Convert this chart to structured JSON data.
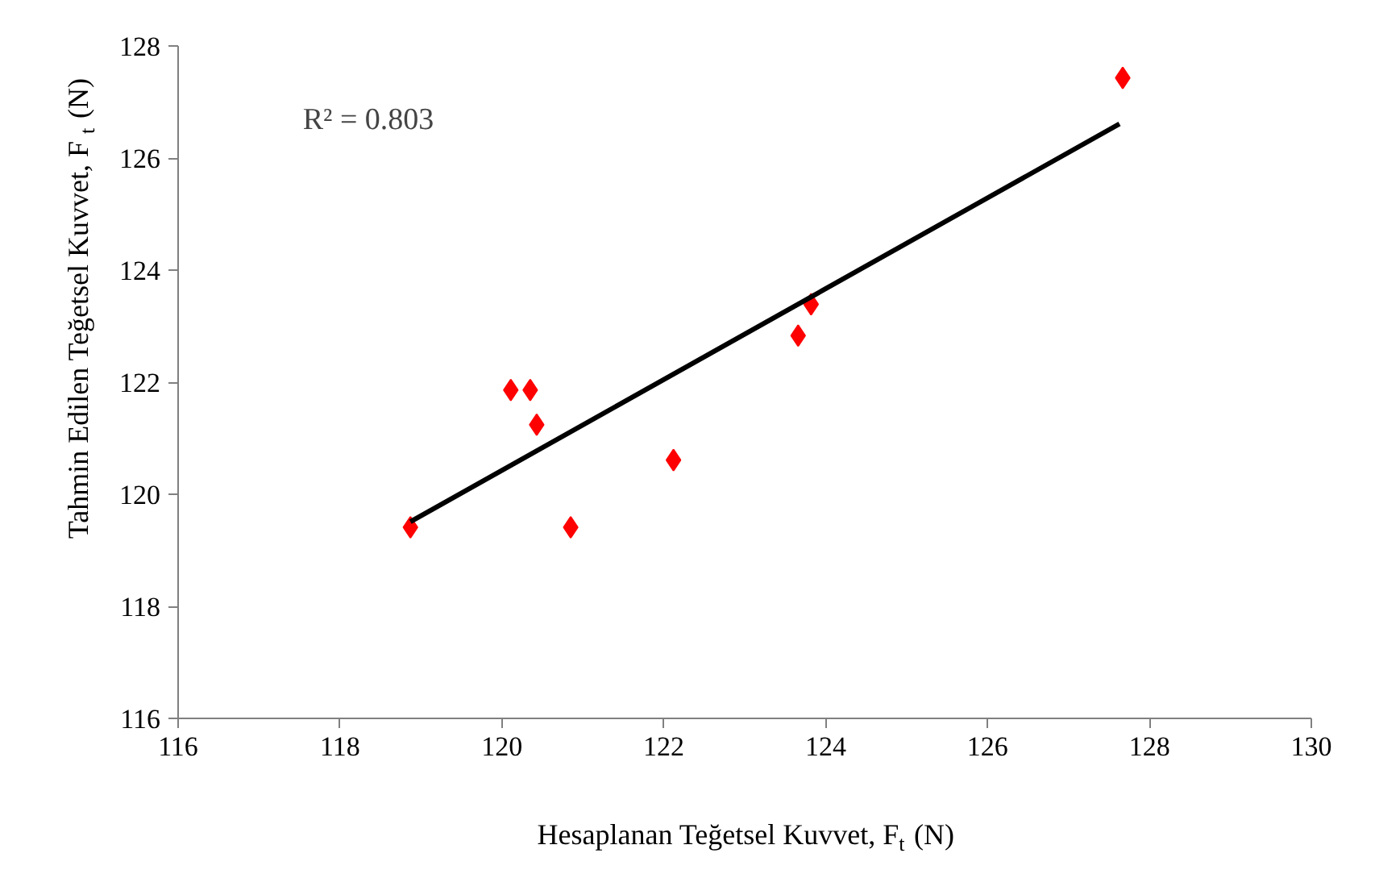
{
  "chart_data": {
    "type": "scatter",
    "xlabel": "Hesaplanan Teğetsel Kuvvet, F$_{t}$ (N)",
    "ylabel": "Tahmin Edilen Teğetsel Kuvvet, F $_{t}$ (N)",
    "annotations": [
      "R² = 0.803"
    ],
    "xlim": [
      116,
      130
    ],
    "xticks": [
      116,
      118,
      120,
      122,
      124,
      126,
      128,
      130
    ],
    "ylim": [
      116,
      128
    ],
    "yticks": [
      116,
      118,
      120,
      122,
      124,
      126,
      128
    ],
    "series": [
      {
        "type": "scatter",
        "marker": "diamond",
        "color": "#ff0000",
        "x": [
          118.87,
          120.11,
          120.35,
          120.43,
          120.85,
          122.12,
          123.66,
          123.82,
          127.67
        ],
        "values": [
          119.41,
          121.86,
          121.86,
          121.24,
          119.41,
          120.61,
          122.83,
          123.39,
          127.43
        ]
      },
      {
        "type": "line",
        "marker": "none",
        "line_style": "solid",
        "color": "#000000",
        "x": [
          118.87,
          127.63
        ],
        "values": [
          119.51,
          126.61
        ]
      }
    ]
  }
}
